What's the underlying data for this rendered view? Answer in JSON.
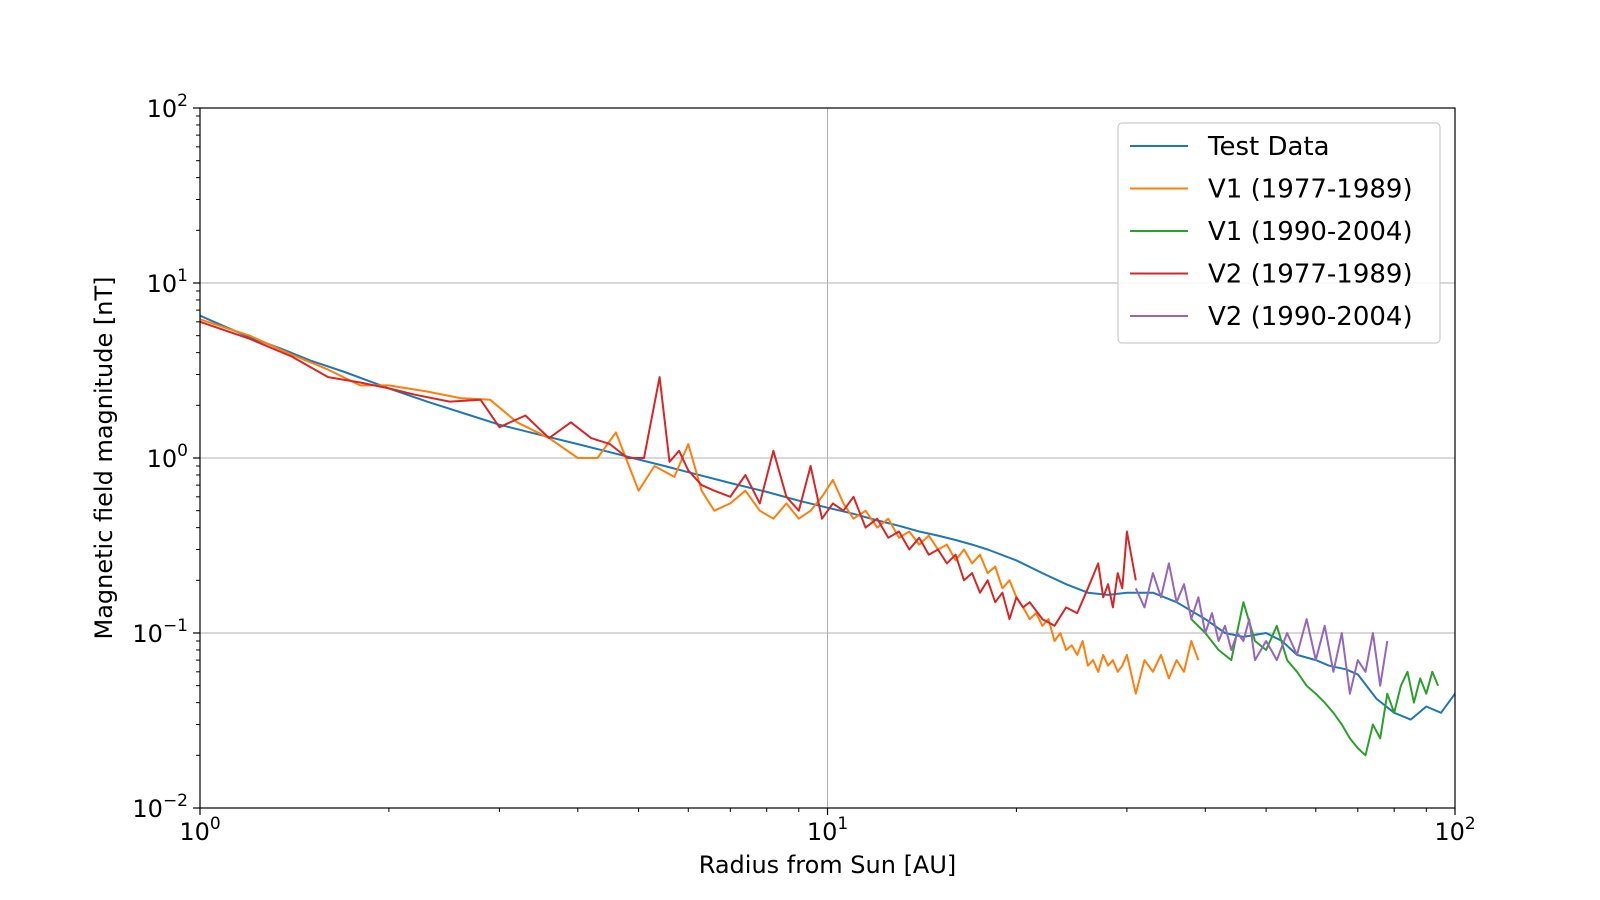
{
  "chart_data": {
    "type": "line",
    "title": "",
    "xlabel": "Radius from Sun [AU]",
    "ylabel": "Magnetic field magnitude [nT]",
    "xscale": "log",
    "yscale": "log",
    "xlim": [
      1,
      100
    ],
    "ylim": [
      0.01,
      100
    ],
    "grid": "major ticks only",
    "legend_position": "top-right",
    "x_tick_labels": [
      {
        "value": 1,
        "base": "10",
        "exp": "0"
      },
      {
        "value": 10,
        "base": "10",
        "exp": "1"
      },
      {
        "value": 100,
        "base": "10",
        "exp": "2"
      }
    ],
    "y_tick_labels": [
      {
        "value": 0.01,
        "base": "10",
        "exp": "−2"
      },
      {
        "value": 0.1,
        "base": "10",
        "exp": "−1"
      },
      {
        "value": 1,
        "base": "10",
        "exp": "0"
      },
      {
        "value": 10,
        "base": "10",
        "exp": "1"
      },
      {
        "value": 100,
        "base": "10",
        "exp": "2"
      }
    ],
    "series": [
      {
        "name": "Test Data",
        "color": "#1f77b4",
        "x": [
          1.0,
          1.1,
          1.2,
          1.35,
          1.5,
          1.7,
          2.0,
          2.3,
          2.7,
          3.0,
          3.5,
          4.0,
          4.5,
          5.0,
          5.5,
          6.0,
          7.0,
          8.0,
          9.0,
          10.0,
          11.0,
          12.0,
          13.0,
          14.0,
          15.0,
          16.0,
          17.0,
          18.0,
          20.0,
          22.0,
          24.0,
          26.0,
          28.0,
          30.0,
          33.0,
          36.0,
          40.0,
          43.0,
          46.0,
          50.0,
          53.0,
          56.0,
          60.0,
          63.0,
          67.0,
          70.0,
          75.0,
          80.0,
          85.0,
          90.0,
          95.0,
          100.0
        ],
        "y": [
          6.5,
          5.6,
          4.9,
          4.2,
          3.6,
          3.1,
          2.5,
          2.1,
          1.75,
          1.55,
          1.35,
          1.2,
          1.08,
          0.98,
          0.9,
          0.83,
          0.72,
          0.64,
          0.57,
          0.52,
          0.48,
          0.44,
          0.41,
          0.38,
          0.36,
          0.34,
          0.32,
          0.3,
          0.26,
          0.22,
          0.19,
          0.17,
          0.165,
          0.17,
          0.17,
          0.15,
          0.12,
          0.1,
          0.095,
          0.1,
          0.09,
          0.075,
          0.07,
          0.065,
          0.062,
          0.058,
          0.042,
          0.035,
          0.032,
          0.038,
          0.035,
          0.045
        ]
      },
      {
        "name": "V1 (1977-1989)",
        "color": "#ff7f0e",
        "x": [
          1.0,
          1.2,
          1.4,
          1.6,
          1.8,
          2.0,
          2.3,
          2.6,
          2.9,
          3.2,
          3.6,
          4.0,
          4.3,
          4.6,
          5.0,
          5.3,
          5.7,
          6.0,
          6.3,
          6.6,
          7.0,
          7.4,
          7.8,
          8.2,
          8.6,
          9.0,
          9.4,
          9.8,
          10.2,
          10.6,
          11.0,
          11.5,
          12.0,
          12.5,
          13.0,
          13.5,
          14.0,
          14.5,
          15.0,
          15.5,
          16.0,
          16.5,
          17.0,
          17.5,
          18.0,
          18.5,
          19.0,
          19.5,
          20.0,
          20.5,
          21.0,
          21.5,
          22.0,
          22.5,
          23.0,
          23.5,
          24.0,
          24.5,
          25.0,
          25.5,
          26.0,
          26.5,
          27.0,
          27.5,
          28.0,
          28.5,
          29.0,
          29.5,
          30.0,
          31.0,
          32.0,
          33.0,
          34.0,
          35.0,
          36.0,
          37.0,
          38.0,
          39.0
        ],
        "y": [
          6.2,
          5.0,
          3.9,
          3.2,
          2.6,
          2.6,
          2.4,
          2.2,
          2.15,
          1.6,
          1.3,
          1.0,
          1.0,
          1.4,
          0.65,
          0.9,
          0.78,
          1.2,
          0.65,
          0.5,
          0.55,
          0.65,
          0.5,
          0.45,
          0.55,
          0.45,
          0.5,
          0.6,
          0.75,
          0.55,
          0.45,
          0.5,
          0.4,
          0.45,
          0.35,
          0.38,
          0.32,
          0.36,
          0.3,
          0.32,
          0.26,
          0.3,
          0.25,
          0.28,
          0.22,
          0.24,
          0.18,
          0.2,
          0.16,
          0.14,
          0.12,
          0.13,
          0.11,
          0.12,
          0.09,
          0.1,
          0.08,
          0.085,
          0.075,
          0.09,
          0.065,
          0.07,
          0.06,
          0.075,
          0.065,
          0.07,
          0.06,
          0.065,
          0.075,
          0.045,
          0.07,
          0.06,
          0.075,
          0.055,
          0.07,
          0.06,
          0.09,
          0.07
        ]
      },
      {
        "name": "V1 (1990-2004)",
        "color": "#2ca02c",
        "x": [
          38.0,
          40.0,
          42.0,
          44.0,
          46.0,
          48.0,
          50.0,
          52.0,
          54.0,
          56.0,
          58.0,
          60.0,
          62.0,
          64.0,
          66.0,
          68.0,
          70.0,
          72.0,
          74.0,
          76.0,
          78.0,
          80.0,
          82.0,
          84.0,
          86.0,
          88.0,
          90.0,
          92.0,
          94.0
        ],
        "y": [
          0.12,
          0.1,
          0.08,
          0.07,
          0.15,
          0.09,
          0.08,
          0.11,
          0.07,
          0.06,
          0.05,
          0.045,
          0.04,
          0.035,
          0.03,
          0.025,
          0.022,
          0.02,
          0.03,
          0.025,
          0.045,
          0.035,
          0.05,
          0.06,
          0.04,
          0.055,
          0.045,
          0.06,
          0.05
        ]
      },
      {
        "name": "V2 (1977-1989)",
        "color": "#d62728",
        "x": [
          1.0,
          1.2,
          1.4,
          1.6,
          1.8,
          2.0,
          2.2,
          2.5,
          2.8,
          3.0,
          3.3,
          3.6,
          3.9,
          4.2,
          4.5,
          4.8,
          5.1,
          5.4,
          5.6,
          5.8,
          6.0,
          6.3,
          6.6,
          7.0,
          7.4,
          7.8,
          8.2,
          8.6,
          9.0,
          9.4,
          9.8,
          10.2,
          10.6,
          11.0,
          11.5,
          12.0,
          12.5,
          13.0,
          13.5,
          14.0,
          14.5,
          15.0,
          15.5,
          16.0,
          16.5,
          17.0,
          17.5,
          18.0,
          18.5,
          19.0,
          19.5,
          20.0,
          20.5,
          21.0,
          22.0,
          23.0,
          24.0,
          25.0,
          26.0,
          27.0,
          27.5,
          28.0,
          28.5,
          29.0,
          29.5,
          30.0,
          31.0
        ],
        "y": [
          6.0,
          4.8,
          3.8,
          2.9,
          2.7,
          2.5,
          2.3,
          2.1,
          2.15,
          1.5,
          1.75,
          1.3,
          1.6,
          1.3,
          1.2,
          1.0,
          1.0,
          2.9,
          0.95,
          1.1,
          0.85,
          0.7,
          0.65,
          0.6,
          0.8,
          0.55,
          1.1,
          0.6,
          0.5,
          0.9,
          0.45,
          0.55,
          0.5,
          0.6,
          0.4,
          0.45,
          0.35,
          0.38,
          0.3,
          0.35,
          0.28,
          0.3,
          0.25,
          0.28,
          0.2,
          0.22,
          0.17,
          0.2,
          0.15,
          0.17,
          0.12,
          0.16,
          0.14,
          0.15,
          0.12,
          0.11,
          0.14,
          0.13,
          0.18,
          0.25,
          0.16,
          0.19,
          0.14,
          0.22,
          0.18,
          0.38,
          0.2
        ]
      },
      {
        "name": "V2 (1990-2004)",
        "color": "#9467bd",
        "x": [
          31.0,
          32.0,
          33.0,
          34.0,
          35.0,
          36.0,
          37.0,
          38.0,
          39.0,
          40.0,
          41.0,
          42.0,
          43.0,
          44.0,
          45.0,
          46.0,
          47.0,
          48.0,
          50.0,
          52.0,
          54.0,
          56.0,
          58.0,
          60.0,
          62.0,
          64.0,
          66.0,
          68.0,
          70.0,
          72.0,
          74.0,
          76.0,
          78.0
        ],
        "y": [
          0.18,
          0.14,
          0.22,
          0.16,
          0.25,
          0.15,
          0.19,
          0.12,
          0.16,
          0.1,
          0.13,
          0.09,
          0.11,
          0.08,
          0.1,
          0.09,
          0.12,
          0.07,
          0.09,
          0.07,
          0.1,
          0.075,
          0.12,
          0.07,
          0.11,
          0.06,
          0.1,
          0.045,
          0.07,
          0.06,
          0.1,
          0.05,
          0.09
        ]
      }
    ]
  }
}
